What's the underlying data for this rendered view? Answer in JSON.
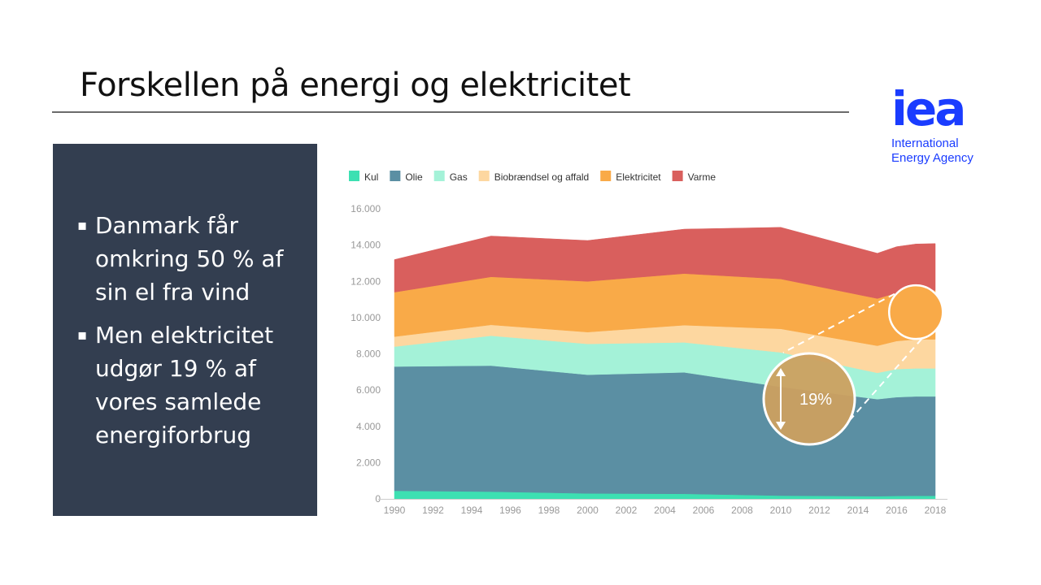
{
  "slide": {
    "title": "Forskellen på energi og elektricitet",
    "logo_mark": "iea",
    "logo_line1": "International",
    "logo_line2": "Energy Agency"
  },
  "panel": {
    "bullets": [
      "Danmark får omkring 50 % af sin el fra vind",
      "Men elektricitet udgør 19 % af vores samlede energiforbrug"
    ]
  },
  "chart_data": {
    "type": "area",
    "stacked": true,
    "x": [
      1990,
      1995,
      2000,
      2005,
      2010,
      2015,
      2016,
      2017,
      2018
    ],
    "x_ticks": [
      "1990",
      "1992",
      "1994",
      "1996",
      "1998",
      "2000",
      "2002",
      "2004",
      "2006",
      "2008",
      "2010",
      "2012",
      "2014",
      "2016",
      "2018"
    ],
    "y_ticks": [
      "0",
      "2.000",
      "4.000",
      "6.000",
      "8.000",
      "10.000",
      "12.000",
      "14.000",
      "16.000"
    ],
    "ylim": [
      0,
      16000
    ],
    "xlim": [
      1990,
      2018
    ],
    "series": [
      {
        "name": "Kul",
        "color": "#3de0b2",
        "values": [
          450,
          400,
          300,
          280,
          180,
          150,
          160,
          170,
          170
        ]
      },
      {
        "name": "Olie",
        "color": "#5b8fa3",
        "values": [
          6850,
          6950,
          6550,
          6700,
          6000,
          5350,
          5450,
          5480,
          5480
        ]
      },
      {
        "name": "Gas",
        "color": "#a4f2d8",
        "values": [
          1100,
          1650,
          1700,
          1650,
          1900,
          1450,
          1550,
          1550,
          1550
        ]
      },
      {
        "name": "Biobrændsel og affald",
        "color": "#fdd7a0",
        "values": [
          550,
          600,
          650,
          950,
          1300,
          1500,
          1550,
          1600,
          1600
        ]
      },
      {
        "name": "Elektricitet",
        "color": "#f9aa48",
        "values": [
          2450,
          2650,
          2800,
          2850,
          2750,
          2600,
          2650,
          2700,
          2700
        ]
      },
      {
        "name": "Varme",
        "color": "#d95f5d",
        "values": [
          1800,
          2250,
          2250,
          2450,
          2850,
          2500,
          2550,
          2560,
          2580
        ]
      }
    ],
    "annotation": {
      "label": "19%",
      "year": 2017,
      "value": 10300
    }
  }
}
